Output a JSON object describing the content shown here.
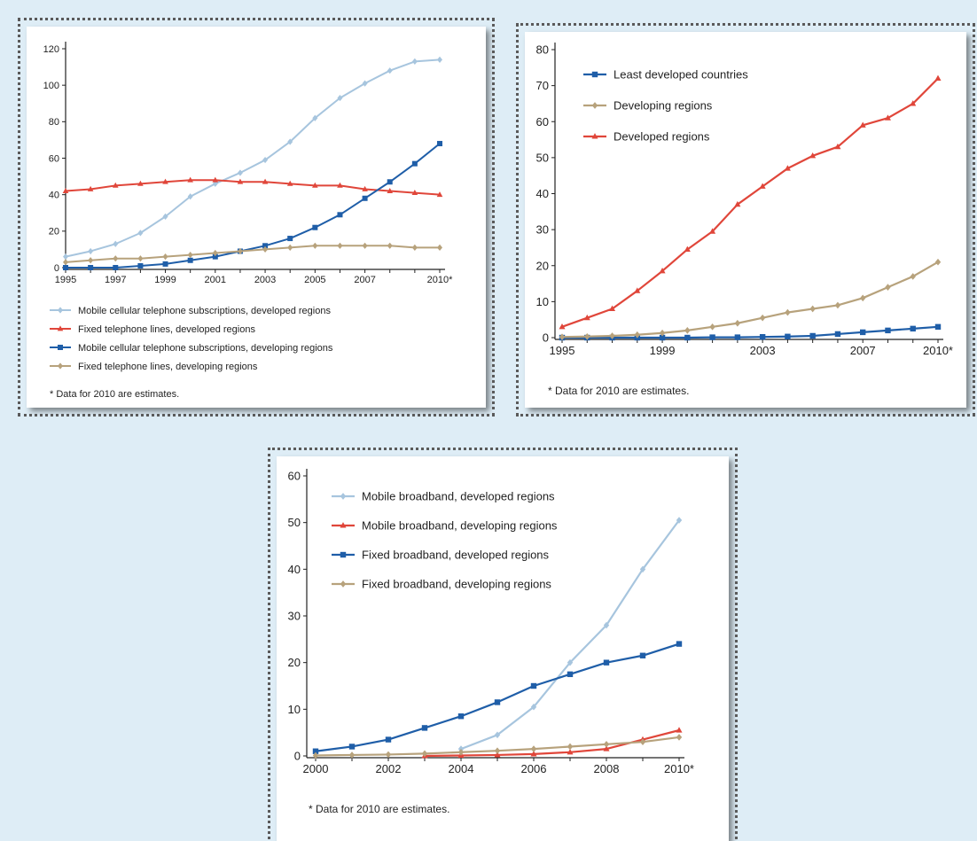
{
  "chart_data": [
    {
      "type": "line",
      "x": [
        "1995",
        "1996",
        "1997",
        "1998",
        "1999",
        "2000",
        "2001",
        "2002",
        "2003",
        "2004",
        "2005",
        "2006",
        "2007",
        "2008",
        "2009",
        "2010*"
      ],
      "x_tick_labels": [
        "1995",
        "1997",
        "1999",
        "2001",
        "2003",
        "2005",
        "2007",
        "2010*"
      ],
      "y_ticks": [
        0,
        20,
        40,
        60,
        80,
        100,
        120
      ],
      "ylim": [
        0,
        120
      ],
      "series": [
        {
          "name": "Mobile cellular telephone subscriptions, developed regions",
          "color": "#a7c5de",
          "marker": "diamond",
          "values": [
            6,
            9,
            13,
            19,
            28,
            39,
            46,
            52,
            59,
            69,
            82,
            93,
            101,
            108,
            113,
            114
          ]
        },
        {
          "name": "Fixed telephone lines, developed regions",
          "color": "#e0463a",
          "marker": "triangle",
          "values": [
            42,
            43,
            45,
            46,
            47,
            48,
            48,
            47,
            47,
            46,
            45,
            45,
            43,
            42,
            41,
            40
          ]
        },
        {
          "name": "Mobile cellular telephone subscriptions, developing regions",
          "color": "#1f5ea8",
          "marker": "square",
          "values": [
            0,
            0,
            0,
            1,
            2,
            4,
            6,
            9,
            12,
            16,
            22,
            29,
            38,
            47,
            57,
            68
          ]
        },
        {
          "name": "Fixed telephone lines, developing regions",
          "color": "#b7a27c",
          "marker": "diamond",
          "values": [
            3,
            4,
            5,
            5,
            6,
            7,
            8,
            9,
            10,
            11,
            12,
            12,
            12,
            12,
            11,
            11
          ]
        }
      ],
      "note": "* Data for 2010 are estimates.",
      "legend": "bottom"
    },
    {
      "type": "line",
      "x": [
        "1995",
        "1996",
        "1997",
        "1998",
        "1999",
        "2000",
        "2001",
        "2002",
        "2003",
        "2004",
        "2005",
        "2006",
        "2007",
        "2008",
        "2009",
        "2010*"
      ],
      "x_tick_labels": [
        "1995",
        "1999",
        "2003",
        "2007",
        "2010*"
      ],
      "y_ticks": [
        0,
        10,
        20,
        30,
        40,
        50,
        60,
        70,
        80
      ],
      "ylim": [
        0,
        80
      ],
      "series": [
        {
          "name": "Least developed countries",
          "color": "#1f5ea8",
          "marker": "square",
          "values": [
            0,
            0,
            0,
            0,
            0,
            0,
            0.1,
            0.1,
            0.2,
            0.3,
            0.5,
            1,
            1.5,
            2,
            2.5,
            3
          ]
        },
        {
          "name": "Developing regions",
          "color": "#b7a27c",
          "marker": "diamond",
          "values": [
            0.2,
            0.3,
            0.5,
            0.8,
            1.3,
            2,
            3,
            4,
            5.5,
            7,
            8,
            9,
            11,
            14,
            17,
            21
          ]
        },
        {
          "name": "Developed regions",
          "color": "#e0463a",
          "marker": "triangle",
          "values": [
            3,
            5.5,
            8,
            13,
            18.5,
            24.5,
            29.5,
            37,
            42,
            47,
            50.5,
            53,
            59,
            61,
            65,
            72
          ]
        }
      ],
      "note": "* Data for 2010 are estimates.",
      "legend": "top-left"
    },
    {
      "type": "line",
      "x": [
        "2000",
        "2001",
        "2002",
        "2003",
        "2004",
        "2005",
        "2006",
        "2007",
        "2008",
        "2009",
        "2010*"
      ],
      "x_tick_labels": [
        "2000",
        "2002",
        "2004",
        "2006",
        "2008",
        "2010*"
      ],
      "y_ticks": [
        0,
        10,
        20,
        30,
        40,
        50,
        60
      ],
      "ylim": [
        0,
        60
      ],
      "series": [
        {
          "name": "Mobile broadband, developed regions",
          "color": "#a7c5de",
          "marker": "diamond",
          "values": [
            null,
            null,
            null,
            null,
            1.5,
            4.5,
            10.5,
            20,
            28,
            40,
            50.5
          ]
        },
        {
          "name": "Mobile broadband, developing regions",
          "color": "#e0463a",
          "marker": "triangle",
          "values": [
            null,
            null,
            null,
            0,
            0.1,
            0.2,
            0.4,
            0.8,
            1.5,
            3.5,
            5.5
          ]
        },
        {
          "name": "Fixed broadband, developed regions",
          "color": "#1f5ea8",
          "marker": "square",
          "values": [
            1,
            2,
            3.5,
            6,
            8.5,
            11.5,
            15,
            17.5,
            20,
            21.5,
            24
          ]
        },
        {
          "name": "Fixed broadband, developing regions",
          "color": "#b7a27c",
          "marker": "diamond",
          "values": [
            0.1,
            0.2,
            0.3,
            0.5,
            0.8,
            1.1,
            1.5,
            2,
            2.5,
            3,
            4
          ]
        }
      ],
      "note": "* Data for 2010 are estimates.",
      "legend": "top-left"
    }
  ]
}
